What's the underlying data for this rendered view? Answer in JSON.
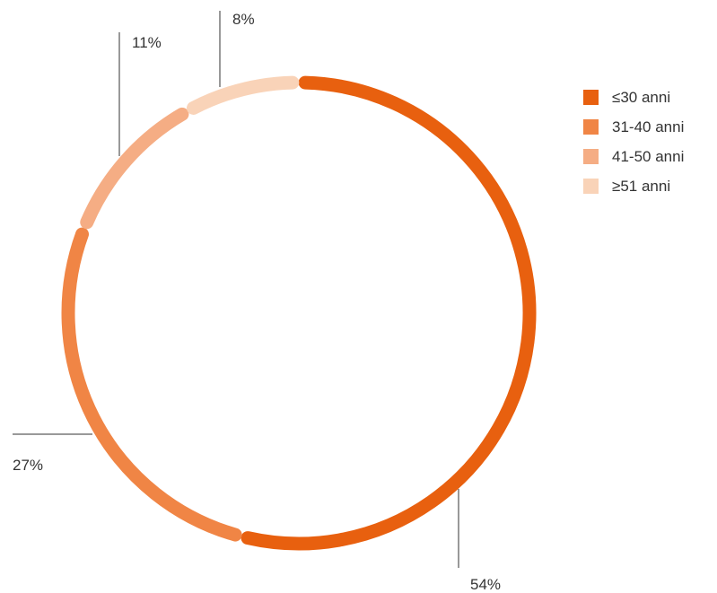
{
  "chart_data": {
    "type": "pie",
    "subtype": "donut",
    "categories": [
      "≤30 anni",
      "31-40 anni",
      "41-50 anni",
      "≥51 anni"
    ],
    "values": [
      54,
      27,
      11,
      8
    ],
    "value_labels": [
      "54%",
      "27%",
      "11%",
      "8%"
    ],
    "colors": [
      "#E8600F",
      "#F08545",
      "#F5AD84",
      "#F9D3B8"
    ],
    "legend_position": "right"
  }
}
